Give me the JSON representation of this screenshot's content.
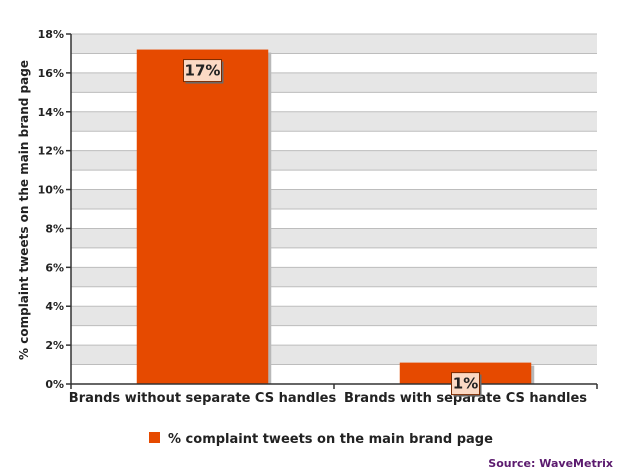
{
  "chart_data": {
    "type": "bar",
    "categories": [
      "Brands without separate CS handles",
      "Brands with separate CS handles"
    ],
    "series": [
      {
        "name": "% complaint tweets on the main brand page",
        "values": [
          17.2,
          1.1
        ]
      }
    ],
    "data_labels": [
      "17%",
      "1%"
    ],
    "ylabel": "% complaint tweets on the main brand page",
    "xlabel": "",
    "ylim": [
      0,
      18
    ],
    "ytick_step": 2,
    "ytick_labels": [
      "0%",
      "2%",
      "4%",
      "6%",
      "8%",
      "10%",
      "12%",
      "14%",
      "16%",
      "18%"
    ],
    "grid": true,
    "legend_position": "bottom",
    "bar_color": "#e64a00",
    "band_color": "#e6e6e6",
    "source": "Source: WaveMetrix",
    "source_color": "#5b1a6e"
  }
}
